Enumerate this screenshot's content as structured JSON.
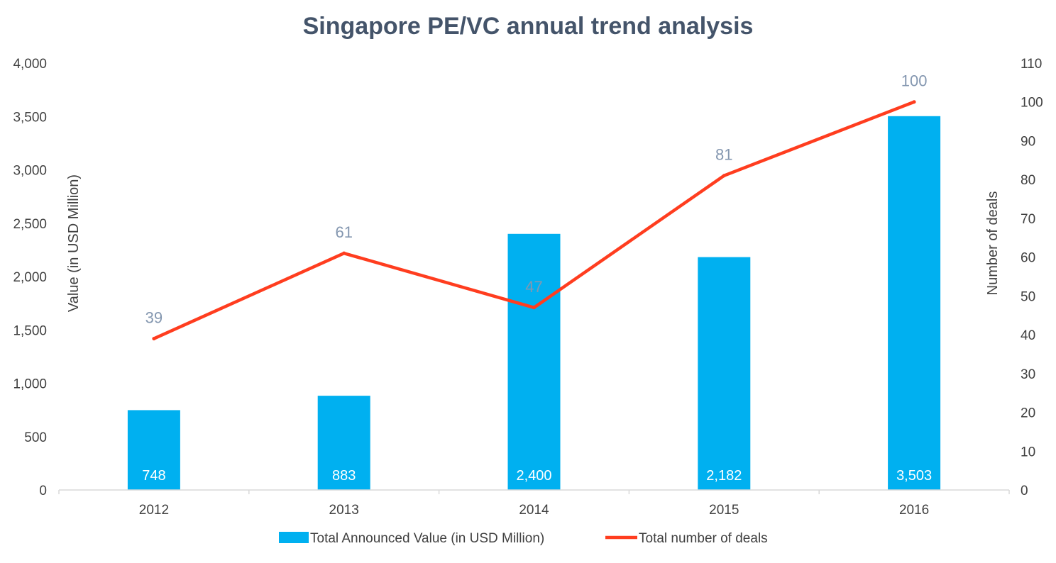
{
  "chart_data": {
    "type": "bar",
    "title": "Singapore PE/VC annual trend analysis",
    "categories": [
      "2012",
      "2013",
      "2014",
      "2015",
      "2016"
    ],
    "series": [
      {
        "name": "Total Announced Value (in USD Million)",
        "type": "bar",
        "axis": "left",
        "color": "#00b0f0",
        "values": [
          748,
          883,
          2400,
          2182,
          3503
        ],
        "labels": [
          "748",
          "883",
          "2,400",
          "2,182",
          "3,503"
        ]
      },
      {
        "name": "Total number of deals",
        "type": "line",
        "axis": "right",
        "color": "#ff3d1f",
        "values": [
          39,
          61,
          47,
          81,
          100
        ],
        "labels": [
          "39",
          "61",
          "47",
          "81",
          "100"
        ]
      }
    ],
    "y_left": {
      "label": "Value (in USD Million)",
      "ylim": [
        0,
        4000
      ],
      "ticks": [
        0,
        500,
        1000,
        1500,
        2000,
        2500,
        3000,
        3500,
        4000
      ],
      "tick_labels": [
        "0",
        "500",
        "1,000",
        "1,500",
        "2,000",
        "2,500",
        "3,000",
        "3,500",
        "4,000"
      ]
    },
    "y_right": {
      "label": "Number of deals",
      "ylim": [
        0,
        110
      ],
      "ticks": [
        0,
        10,
        20,
        30,
        40,
        50,
        60,
        70,
        80,
        90,
        100,
        110
      ],
      "tick_labels": [
        "0",
        "10",
        "20",
        "30",
        "40",
        "50",
        "60",
        "70",
        "80",
        "90",
        "100",
        "110"
      ]
    },
    "grid": false,
    "legend_position": "bottom"
  }
}
